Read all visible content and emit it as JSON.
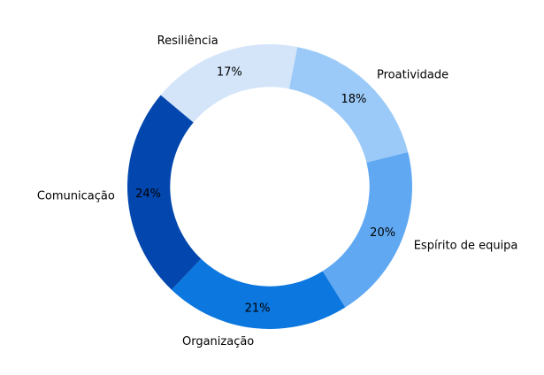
{
  "figure": {
    "background": "#ffffff"
  },
  "chart_data": {
    "type": "pie",
    "subtype": "donut",
    "title": "",
    "categories": [
      "Resiliência",
      "Proatividade",
      "Espírito de equipa",
      "Organização",
      "Comunicação"
    ],
    "values": [
      17,
      18,
      20,
      21,
      24
    ],
    "pct_labels": [
      "17%",
      "18%",
      "20%",
      "21%",
      "24%"
    ],
    "colors": [
      "#d4e5fa",
      "#9ccaf8",
      "#60a9f2",
      "#0b77df",
      "#0347ae"
    ],
    "start_angle_deg": 140,
    "direction": "clockwise",
    "hole_ratio": 0.7,
    "label_distance": 1.09,
    "pct_distance": 0.855,
    "legend_position": "none",
    "text_color": "#000000"
  }
}
